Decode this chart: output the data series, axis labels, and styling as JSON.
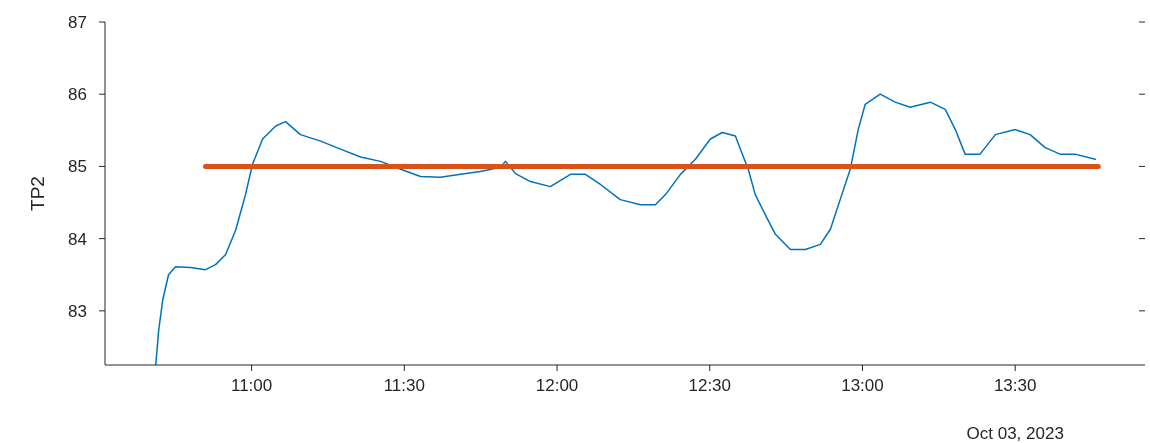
{
  "chart_data": {
    "type": "line",
    "ylabel": "TP2",
    "xlim": [
      10.52,
      13.925
    ],
    "ylim": [
      82.25,
      87
    ],
    "xticks": [
      {
        "value": 11,
        "label": "11:00"
      },
      {
        "value": 11.5,
        "label": "11:30"
      },
      {
        "value": 12,
        "label": "12:00"
      },
      {
        "value": 12.5,
        "label": "12:30"
      },
      {
        "value": 13,
        "label": "13:00"
      },
      {
        "value": 13.5,
        "label": "13:30"
      }
    ],
    "yticks": [
      83,
      84,
      85,
      86,
      87
    ],
    "annotations": [
      "Oct 03, 2023"
    ],
    "series": [
      {
        "color": "#0072bd",
        "x": [
          10.686,
          10.696,
          10.709,
          10.728,
          10.751,
          10.8,
          10.849,
          10.882,
          10.915,
          10.948,
          10.98,
          11.003,
          11.036,
          11.079,
          11.111,
          11.16,
          11.226,
          11.291,
          11.357,
          11.422,
          11.488,
          11.553,
          11.618,
          11.684,
          11.749,
          11.815,
          11.831,
          11.864,
          11.913,
          11.978,
          12.044,
          12.093,
          12.142,
          12.207,
          12.273,
          12.322,
          12.355,
          12.404,
          12.453,
          12.502,
          12.541,
          12.584,
          12.6,
          12.626,
          12.649,
          12.682,
          12.715,
          12.764,
          12.813,
          12.862,
          12.895,
          12.927,
          12.96,
          12.986,
          13.009,
          13.058,
          13.107,
          13.156,
          13.222,
          13.271,
          13.304,
          13.336,
          13.385,
          13.435,
          13.5,
          13.549,
          13.598,
          13.647,
          13.696,
          13.762
        ],
        "values": [
          82.25,
          82.74,
          83.15,
          83.5,
          83.61,
          83.6,
          83.57,
          83.64,
          83.78,
          84.12,
          84.61,
          85.03,
          85.38,
          85.56,
          85.62,
          85.44,
          85.35,
          85.24,
          85.13,
          85.07,
          84.96,
          84.86,
          84.85,
          84.89,
          84.93,
          84.99,
          85.07,
          84.9,
          84.79,
          84.72,
          84.89,
          84.89,
          84.75,
          84.54,
          84.47,
          84.47,
          84.61,
          84.89,
          85.1,
          85.38,
          85.47,
          85.42,
          85.24,
          84.96,
          84.61,
          84.33,
          84.06,
          83.85,
          83.85,
          83.92,
          84.13,
          84.54,
          84.96,
          85.51,
          85.86,
          86.0,
          85.89,
          85.82,
          85.89,
          85.79,
          85.51,
          85.17,
          85.17,
          85.44,
          85.51,
          85.44,
          85.26,
          85.17,
          85.17,
          85.1
        ]
      },
      {
        "color": "#d95319",
        "x": [
          10.849,
          13.772
        ],
        "values": [
          85,
          85
        ]
      }
    ]
  }
}
